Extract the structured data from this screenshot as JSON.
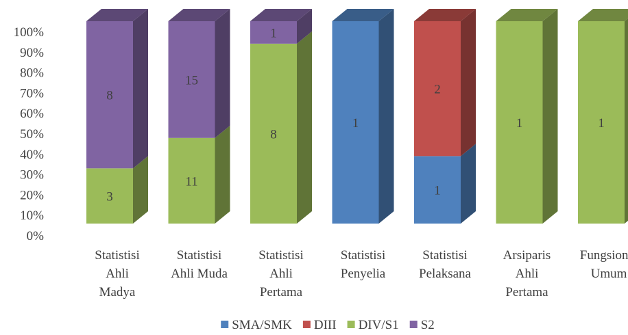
{
  "chart_data": {
    "type": "bar",
    "stacked": "percent",
    "three_d": true,
    "title": "",
    "xlabel": "",
    "ylabel": "",
    "ylim": [
      0,
      100
    ],
    "y_ticks": [
      "0%",
      "10%",
      "20%",
      "30%",
      "40%",
      "50%",
      "60%",
      "70%",
      "80%",
      "90%",
      "100%"
    ],
    "grid": false,
    "legend_position": "bottom",
    "categories": [
      [
        "Statistisi",
        "Ahli",
        "Madya"
      ],
      [
        "Statistisi",
        "Ahli Muda"
      ],
      [
        "Statistisi",
        "Ahli",
        "Pertama"
      ],
      [
        "Statistisi",
        "Penyelia"
      ],
      [
        "Statistisi",
        "Pelaksana"
      ],
      [
        "Arsiparis",
        "Ahli",
        "Pertama"
      ],
      [
        "Fungsional",
        "Umum"
      ]
    ],
    "series": [
      {
        "name": "SMA/SMK",
        "color": "#4F81BD",
        "values": [
          0,
          0,
          0,
          1,
          1,
          0,
          0
        ]
      },
      {
        "name": "DIII",
        "color": "#C0504D",
        "values": [
          0,
          0,
          0,
          0,
          2,
          0,
          0
        ]
      },
      {
        "name": "DIV/S1",
        "color": "#9BBB59",
        "values": [
          3,
          11,
          8,
          0,
          0,
          1,
          1
        ]
      },
      {
        "name": "S2",
        "color": "#8064A2",
        "values": [
          8,
          15,
          1,
          0,
          0,
          0,
          0
        ]
      }
    ]
  }
}
